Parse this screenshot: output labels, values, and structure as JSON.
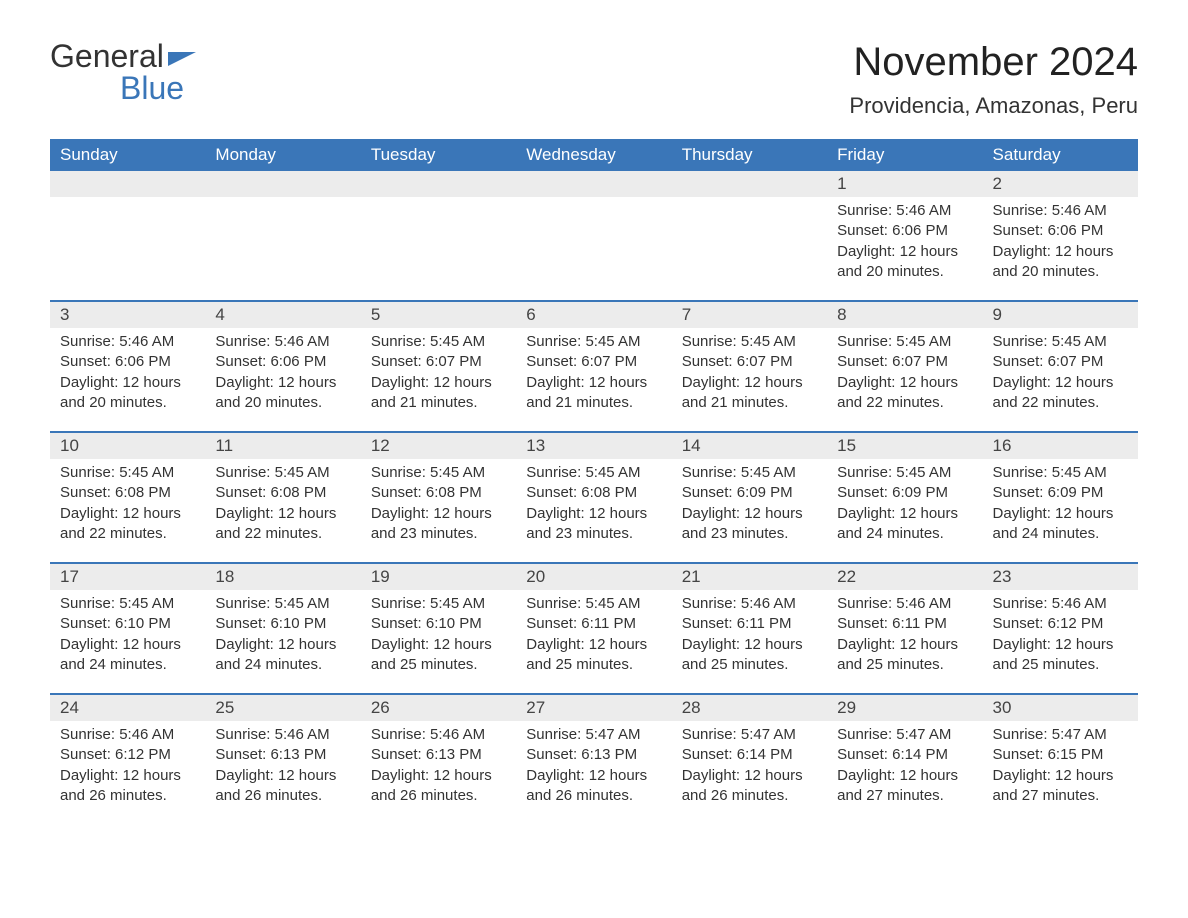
{
  "logo": {
    "top": "General",
    "bottom": "Blue"
  },
  "title": "November 2024",
  "location": "Providencia, Amazonas, Peru",
  "colors": {
    "brand_blue": "#3a76b8",
    "header_bg": "#3a76b8",
    "header_text": "#ffffff",
    "daynum_bg": "#ececec",
    "text": "#333333",
    "background": "#ffffff"
  },
  "weekdays": [
    "Sunday",
    "Monday",
    "Tuesday",
    "Wednesday",
    "Thursday",
    "Friday",
    "Saturday"
  ],
  "layout": {
    "first_weekday_index": 5,
    "days_in_month": 30,
    "columns": 7
  },
  "days": [
    {
      "n": 1,
      "sunrise": "5:46 AM",
      "sunset": "6:06 PM",
      "daylight": "12 hours and 20 minutes."
    },
    {
      "n": 2,
      "sunrise": "5:46 AM",
      "sunset": "6:06 PM",
      "daylight": "12 hours and 20 minutes."
    },
    {
      "n": 3,
      "sunrise": "5:46 AM",
      "sunset": "6:06 PM",
      "daylight": "12 hours and 20 minutes."
    },
    {
      "n": 4,
      "sunrise": "5:46 AM",
      "sunset": "6:06 PM",
      "daylight": "12 hours and 20 minutes."
    },
    {
      "n": 5,
      "sunrise": "5:45 AM",
      "sunset": "6:07 PM",
      "daylight": "12 hours and 21 minutes."
    },
    {
      "n": 6,
      "sunrise": "5:45 AM",
      "sunset": "6:07 PM",
      "daylight": "12 hours and 21 minutes."
    },
    {
      "n": 7,
      "sunrise": "5:45 AM",
      "sunset": "6:07 PM",
      "daylight": "12 hours and 21 minutes."
    },
    {
      "n": 8,
      "sunrise": "5:45 AM",
      "sunset": "6:07 PM",
      "daylight": "12 hours and 22 minutes."
    },
    {
      "n": 9,
      "sunrise": "5:45 AM",
      "sunset": "6:07 PM",
      "daylight": "12 hours and 22 minutes."
    },
    {
      "n": 10,
      "sunrise": "5:45 AM",
      "sunset": "6:08 PM",
      "daylight": "12 hours and 22 minutes."
    },
    {
      "n": 11,
      "sunrise": "5:45 AM",
      "sunset": "6:08 PM",
      "daylight": "12 hours and 22 minutes."
    },
    {
      "n": 12,
      "sunrise": "5:45 AM",
      "sunset": "6:08 PM",
      "daylight": "12 hours and 23 minutes."
    },
    {
      "n": 13,
      "sunrise": "5:45 AM",
      "sunset": "6:08 PM",
      "daylight": "12 hours and 23 minutes."
    },
    {
      "n": 14,
      "sunrise": "5:45 AM",
      "sunset": "6:09 PM",
      "daylight": "12 hours and 23 minutes."
    },
    {
      "n": 15,
      "sunrise": "5:45 AM",
      "sunset": "6:09 PM",
      "daylight": "12 hours and 24 minutes."
    },
    {
      "n": 16,
      "sunrise": "5:45 AM",
      "sunset": "6:09 PM",
      "daylight": "12 hours and 24 minutes."
    },
    {
      "n": 17,
      "sunrise": "5:45 AM",
      "sunset": "6:10 PM",
      "daylight": "12 hours and 24 minutes."
    },
    {
      "n": 18,
      "sunrise": "5:45 AM",
      "sunset": "6:10 PM",
      "daylight": "12 hours and 24 minutes."
    },
    {
      "n": 19,
      "sunrise": "5:45 AM",
      "sunset": "6:10 PM",
      "daylight": "12 hours and 25 minutes."
    },
    {
      "n": 20,
      "sunrise": "5:45 AM",
      "sunset": "6:11 PM",
      "daylight": "12 hours and 25 minutes."
    },
    {
      "n": 21,
      "sunrise": "5:46 AM",
      "sunset": "6:11 PM",
      "daylight": "12 hours and 25 minutes."
    },
    {
      "n": 22,
      "sunrise": "5:46 AM",
      "sunset": "6:11 PM",
      "daylight": "12 hours and 25 minutes."
    },
    {
      "n": 23,
      "sunrise": "5:46 AM",
      "sunset": "6:12 PM",
      "daylight": "12 hours and 25 minutes."
    },
    {
      "n": 24,
      "sunrise": "5:46 AM",
      "sunset": "6:12 PM",
      "daylight": "12 hours and 26 minutes."
    },
    {
      "n": 25,
      "sunrise": "5:46 AM",
      "sunset": "6:13 PM",
      "daylight": "12 hours and 26 minutes."
    },
    {
      "n": 26,
      "sunrise": "5:46 AM",
      "sunset": "6:13 PM",
      "daylight": "12 hours and 26 minutes."
    },
    {
      "n": 27,
      "sunrise": "5:47 AM",
      "sunset": "6:13 PM",
      "daylight": "12 hours and 26 minutes."
    },
    {
      "n": 28,
      "sunrise": "5:47 AM",
      "sunset": "6:14 PM",
      "daylight": "12 hours and 26 minutes."
    },
    {
      "n": 29,
      "sunrise": "5:47 AM",
      "sunset": "6:14 PM",
      "daylight": "12 hours and 27 minutes."
    },
    {
      "n": 30,
      "sunrise": "5:47 AM",
      "sunset": "6:15 PM",
      "daylight": "12 hours and 27 minutes."
    }
  ],
  "labels": {
    "sunrise_prefix": "Sunrise: ",
    "sunset_prefix": "Sunset: ",
    "daylight_prefix": "Daylight: "
  }
}
